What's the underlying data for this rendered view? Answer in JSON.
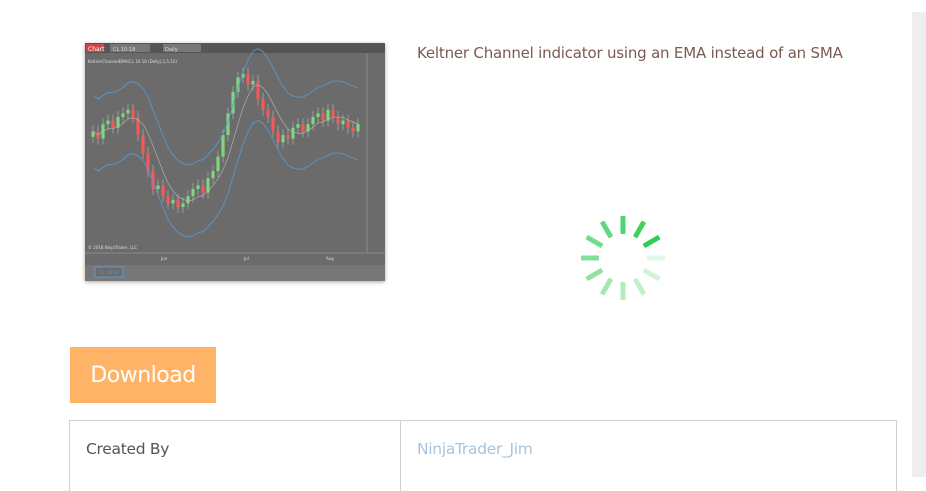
{
  "thumbnail": {
    "alt_lettering": [
      "Chart",
      "CL 10-18",
      "Daily",
      "KeltnerChannelEMA(CL 10-18 (Daily),1,5,10)",
      "© 2018 NinjaTrader, LLC",
      "Jun",
      "Jul",
      "Aug",
      "CL 10-18"
    ],
    "colors": {
      "background": "#6b6b6b",
      "up": "#7ed67e",
      "down": "#f05a5a",
      "band": "#5a9ad6",
      "mid": "#b8b8b8"
    }
  },
  "description": "Keltner Channel indicator using an EMA instead of an SMA",
  "spinner": {
    "icon": "loading-spinner-icon",
    "color": "#33cc55"
  },
  "download": {
    "label": "Download",
    "color": "#ffb366"
  },
  "details": {
    "rows": [
      {
        "label": "Created By",
        "value": "NinjaTrader_Jim"
      }
    ]
  }
}
